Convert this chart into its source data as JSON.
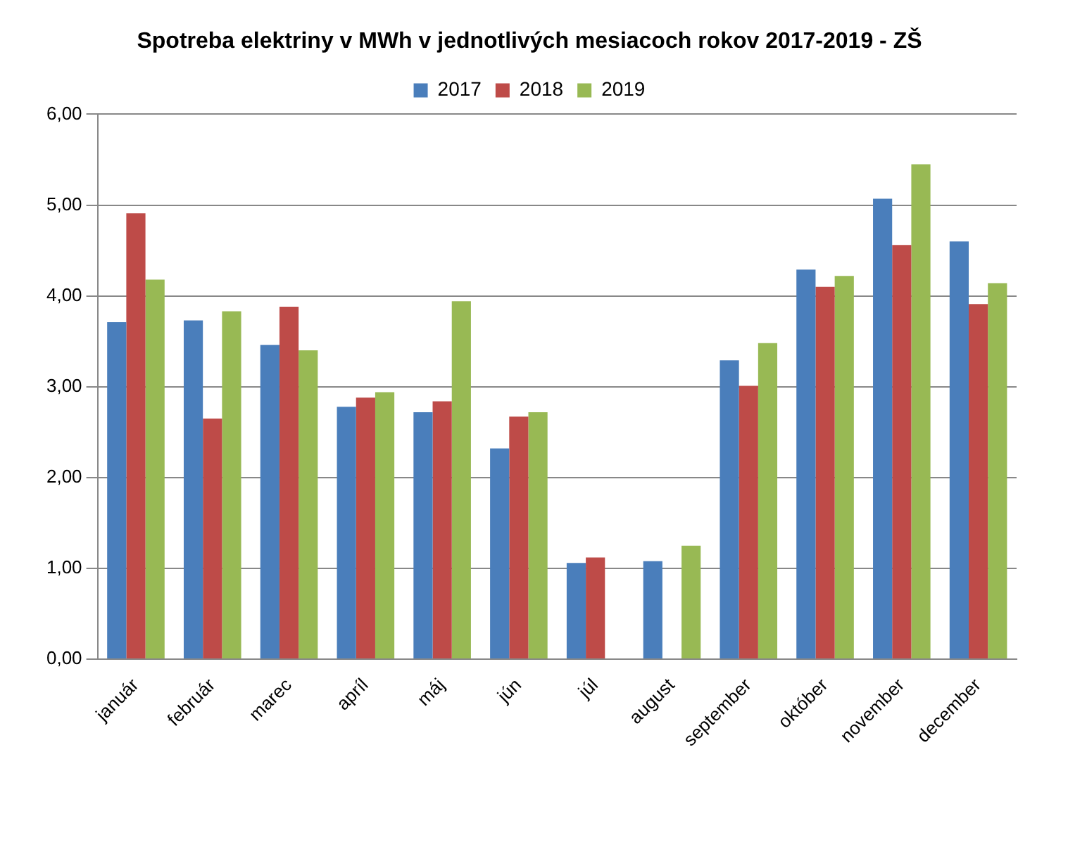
{
  "chart_data": {
    "type": "bar",
    "title": "Spotreba elektriny v MWh v jednotlivých mesiacoch rokov 2017-2019 - ZŠ",
    "categories": [
      "január",
      "február",
      "marec",
      "apríl",
      "máj",
      "jún",
      "júl",
      "august",
      "september",
      "október",
      "november",
      "december"
    ],
    "series": [
      {
        "name": "2017",
        "color": "#4a7ebb",
        "values": [
          3.71,
          3.73,
          3.46,
          2.78,
          2.72,
          2.32,
          1.06,
          1.08,
          3.29,
          4.29,
          5.07,
          4.6
        ]
      },
      {
        "name": "2018",
        "color": "#be4b48",
        "values": [
          4.91,
          2.65,
          3.88,
          2.88,
          2.84,
          2.67,
          1.12,
          null,
          3.01,
          4.1,
          4.56,
          3.91
        ]
      },
      {
        "name": "2019",
        "color": "#98b954",
        "values": [
          4.18,
          3.83,
          3.4,
          2.94,
          3.94,
          2.72,
          null,
          1.25,
          3.48,
          4.22,
          5.45,
          4.14
        ]
      }
    ],
    "ylim": [
      0,
      6
    ],
    "yticks": [
      {
        "value": 0,
        "label": "0,00"
      },
      {
        "value": 1,
        "label": "1,00"
      },
      {
        "value": 2,
        "label": "2,00"
      },
      {
        "value": 3,
        "label": "3,00"
      },
      {
        "value": 4,
        "label": "4,00"
      },
      {
        "value": 5,
        "label": "5,00"
      },
      {
        "value": 6,
        "label": "6,00"
      }
    ],
    "grid": "y",
    "legend": "top"
  }
}
